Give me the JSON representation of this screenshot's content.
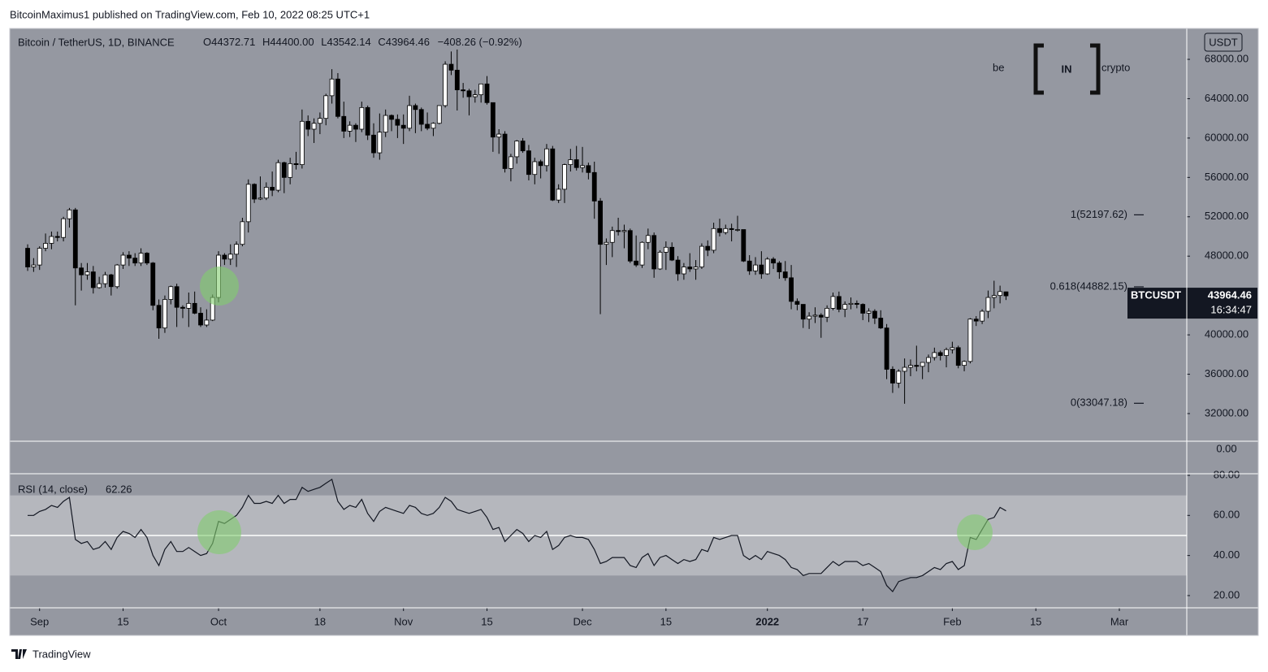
{
  "header": "BitcoinMaximus1 published on TradingView.com, Feb 10, 2022 08:25 UTC+1",
  "footer": "TradingView",
  "logo": {
    "left": "be",
    "middle": "IN",
    "right": "crypto"
  },
  "chart_data": {
    "type": "candlestick",
    "title": "Bitcoin / TetherUS, 1D, BINANCE",
    "legend": {
      "o_label": "O",
      "open": "44372.71",
      "h_label": "H",
      "high": "44400.00",
      "l_label": "L",
      "low": "43542.14",
      "c_label": "C",
      "close": "43964.46",
      "change": "−408.26 (−0.92%)"
    },
    "currency": "USDT",
    "symbol": "BTCUSDT",
    "last_price": 43964.46,
    "countdown": "16:34:47",
    "separator_label": "0.00",
    "up_color": "#ffffff",
    "down_color": "#000000",
    "background": "#9598a1",
    "xlim": [
      -3,
      194.3
    ],
    "xticks": [
      {
        "value": 2,
        "label": "Sep"
      },
      {
        "value": 16,
        "label": "15"
      },
      {
        "value": 32,
        "label": "Oct"
      },
      {
        "value": 49,
        "label": "18"
      },
      {
        "value": 63,
        "label": "Nov"
      },
      {
        "value": 77,
        "label": "15"
      },
      {
        "value": 93,
        "label": "Dec"
      },
      {
        "value": 107,
        "label": "15"
      },
      {
        "value": 124,
        "label": "2022"
      },
      {
        "value": 140,
        "label": "17"
      },
      {
        "value": 155,
        "label": "Feb"
      },
      {
        "value": 169,
        "label": "15"
      },
      {
        "value": 183,
        "label": "Mar"
      }
    ],
    "ylim": [
      29190,
      71140
    ],
    "yticks": [
      {
        "value": 32000,
        "label": "32000.00"
      },
      {
        "value": 36000,
        "label": "36000.00"
      },
      {
        "value": 40000,
        "label": "40000.00"
      },
      {
        "value": 44000,
        "label": "44000.00"
      },
      {
        "value": 48000,
        "label": "48000.00"
      },
      {
        "value": 52000,
        "label": "52000.00"
      },
      {
        "value": 56000,
        "label": "56000.00"
      },
      {
        "value": 60000,
        "label": "60000.00"
      },
      {
        "value": 64000,
        "label": "64000.00"
      },
      {
        "value": 68000,
        "label": "68000.00"
      }
    ],
    "fib_levels": [
      {
        "value": 52197.62,
        "label": "1(52197.62)"
      },
      {
        "value": 44882.15,
        "label": "0.618(44882.15)"
      },
      {
        "value": 33047.18,
        "label": "0(33047.18)"
      }
    ],
    "candles": [
      [
        48800,
        49200,
        46500,
        46900
      ],
      [
        46900,
        47800,
        46400,
        47100
      ],
      [
        47100,
        49000,
        46600,
        48800
      ],
      [
        48800,
        50300,
        48500,
        49300
      ],
      [
        49300,
        50500,
        48700,
        50000
      ],
      [
        50000,
        50500,
        49500,
        49900
      ],
      [
        49900,
        52000,
        49500,
        51800
      ],
      [
        51800,
        52900,
        50900,
        52700
      ],
      [
        52700,
        52900,
        43000,
        46800
      ],
      [
        46800,
        47300,
        44500,
        46100
      ],
      [
        46100,
        47300,
        45600,
        46400
      ],
      [
        46400,
        47000,
        44200,
        44800
      ],
      [
        44800,
        45900,
        44700,
        45200
      ],
      [
        45200,
        46400,
        44800,
        46100
      ],
      [
        46100,
        46200,
        44000,
        44900
      ],
      [
        44900,
        47200,
        44700,
        47100
      ],
      [
        47100,
        48400,
        46700,
        48100
      ],
      [
        48100,
        48500,
        47000,
        47800
      ],
      [
        47800,
        48300,
        47000,
        47300
      ],
      [
        47300,
        48800,
        47000,
        48300
      ],
      [
        48300,
        48400,
        47100,
        47300
      ],
      [
        47300,
        47400,
        42500,
        43000
      ],
      [
        43000,
        43600,
        39600,
        40700
      ],
      [
        40700,
        44000,
        40200,
        43600
      ],
      [
        43600,
        45000,
        43100,
        44900
      ],
      [
        44900,
        45200,
        40800,
        42800
      ],
      [
        42800,
        43000,
        41700,
        42700
      ],
      [
        42700,
        44300,
        40800,
        43200
      ],
      [
        43200,
        44400,
        42100,
        42200
      ],
      [
        42200,
        42800,
        40800,
        41000
      ],
      [
        41000,
        42600,
        40800,
        41500
      ],
      [
        41500,
        44100,
        41400,
        43800
      ],
      [
        43800,
        48500,
        43300,
        48100
      ],
      [
        48100,
        48300,
        47100,
        47700
      ],
      [
        47700,
        49200,
        47100,
        48200
      ],
      [
        48200,
        49500,
        46900,
        49200
      ],
      [
        49200,
        51900,
        49000,
        51500
      ],
      [
        51500,
        55800,
        50400,
        55300
      ],
      [
        55300,
        55400,
        53400,
        53800
      ],
      [
        53800,
        56100,
        53700,
        53900
      ],
      [
        53900,
        55500,
        53700,
        55000
      ],
      [
        55000,
        56600,
        54100,
        54700
      ],
      [
        54700,
        57800,
        54500,
        57500
      ],
      [
        57500,
        57600,
        54400,
        56000
      ],
      [
        56000,
        58000,
        55300,
        57400
      ],
      [
        57400,
        58600,
        56800,
        57300
      ],
      [
        57300,
        62900,
        56900,
        61700
      ],
      [
        61700,
        62300,
        60200,
        60900
      ],
      [
        60900,
        62000,
        59500,
        61500
      ],
      [
        61500,
        62600,
        60400,
        62000
      ],
      [
        62000,
        64500,
        61300,
        64300
      ],
      [
        64300,
        67000,
        63500,
        66000
      ],
      [
        66000,
        66600,
        62000,
        62200
      ],
      [
        62200,
        63700,
        60000,
        60700
      ],
      [
        60700,
        61700,
        60100,
        61300
      ],
      [
        61300,
        61500,
        59600,
        60900
      ],
      [
        60900,
        63700,
        60600,
        63100
      ],
      [
        63100,
        63300,
        59800,
        60300
      ],
      [
        60300,
        61500,
        58000,
        58500
      ],
      [
        58500,
        62500,
        57800,
        60600
      ],
      [
        60600,
        62900,
        60100,
        62300
      ],
      [
        62300,
        62400,
        60700,
        61900
      ],
      [
        61900,
        62400,
        60000,
        61300
      ],
      [
        61300,
        62400,
        59400,
        61000
      ],
      [
        61000,
        64300,
        60700,
        63300
      ],
      [
        63300,
        63500,
        60500,
        62900
      ],
      [
        62900,
        63100,
        60700,
        61400
      ],
      [
        61400,
        62600,
        60800,
        61000
      ],
      [
        61000,
        61600,
        60200,
        61500
      ],
      [
        61500,
        63300,
        61400,
        63300
      ],
      [
        63300,
        67800,
        63100,
        67500
      ],
      [
        67500,
        68800,
        66400,
        66900
      ],
      [
        66900,
        69000,
        62800,
        64900
      ],
      [
        64900,
        65600,
        64100,
        64800
      ],
      [
        64800,
        65000,
        62300,
        64200
      ],
      [
        64200,
        64900,
        63600,
        64400
      ],
      [
        64400,
        65500,
        63600,
        65500
      ],
      [
        65500,
        66300,
        63400,
        63600
      ],
      [
        63600,
        63600,
        58600,
        60100
      ],
      [
        60100,
        60900,
        58400,
        60400
      ],
      [
        60400,
        60700,
        56500,
        56900
      ],
      [
        56900,
        58400,
        55600,
        58100
      ],
      [
        58100,
        59800,
        57400,
        59700
      ],
      [
        59700,
        60000,
        58500,
        58700
      ],
      [
        58700,
        59300,
        55700,
        56300
      ],
      [
        56300,
        58000,
        55300,
        57600
      ],
      [
        57600,
        57800,
        55900,
        57200
      ],
      [
        57200,
        59400,
        56600,
        58900
      ],
      [
        58900,
        59200,
        53600,
        53700
      ],
      [
        53700,
        55300,
        53400,
        54800
      ],
      [
        54800,
        57400,
        53400,
        57300
      ],
      [
        57300,
        58900,
        56600,
        57800
      ],
      [
        57800,
        59200,
        56700,
        57000
      ],
      [
        57000,
        59100,
        56500,
        57200
      ],
      [
        57200,
        57500,
        55800,
        56500
      ],
      [
        56500,
        57600,
        51800,
        53600
      ],
      [
        53600,
        53900,
        42100,
        49200
      ],
      [
        49200,
        49800,
        47100,
        49400
      ],
      [
        49400,
        51000,
        47900,
        50600
      ],
      [
        50600,
        51900,
        50100,
        50500
      ],
      [
        50500,
        51200,
        48800,
        50600
      ],
      [
        50600,
        50800,
        47300,
        47500
      ],
      [
        47500,
        50100,
        46900,
        47100
      ],
      [
        47100,
        49500,
        46800,
        49400
      ],
      [
        49400,
        50800,
        48700,
        50100
      ],
      [
        50100,
        50400,
        45800,
        46700
      ],
      [
        46700,
        48600,
        46600,
        48400
      ],
      [
        48400,
        49500,
        46600,
        48900
      ],
      [
        48900,
        49400,
        47500,
        47600
      ],
      [
        47600,
        48000,
        45500,
        46200
      ],
      [
        46200,
        47300,
        45600,
        46900
      ],
      [
        46900,
        48300,
        46400,
        46700
      ],
      [
        46700,
        47600,
        45600,
        46900
      ],
      [
        46900,
        49300,
        46700,
        49000
      ],
      [
        49000,
        49600,
        48000,
        48600
      ],
      [
        48600,
        51400,
        48300,
        50800
      ],
      [
        50800,
        51800,
        50000,
        50400
      ],
      [
        50400,
        51200,
        50200,
        50800
      ],
      [
        50800,
        51300,
        49500,
        50700
      ],
      [
        50700,
        52100,
        50500,
        50700
      ],
      [
        50700,
        50700,
        47400,
        47500
      ],
      [
        47500,
        48100,
        46100,
        46500
      ],
      [
        46500,
        47900,
        46100,
        47100
      ],
      [
        47100,
        48500,
        45700,
        46200
      ],
      [
        46200,
        47900,
        46100,
        47700
      ],
      [
        47700,
        47900,
        46700,
        47300
      ],
      [
        47300,
        47500,
        45700,
        46400
      ],
      [
        46400,
        47500,
        45500,
        45800
      ],
      [
        45800,
        47100,
        42600,
        43400
      ],
      [
        43400,
        43700,
        42500,
        43100
      ],
      [
        43100,
        43100,
        40700,
        41600
      ],
      [
        41600,
        42300,
        40600,
        41900
      ],
      [
        41900,
        42800,
        41200,
        42000
      ],
      [
        42000,
        42200,
        39700,
        41800
      ],
      [
        41800,
        43000,
        41300,
        42700
      ],
      [
        42700,
        44300,
        42500,
        43900
      ],
      [
        43900,
        44400,
        42300,
        42600
      ],
      [
        42600,
        43400,
        41800,
        43100
      ],
      [
        43100,
        43800,
        42600,
        43200
      ],
      [
        43200,
        43500,
        42700,
        43100
      ],
      [
        43100,
        43200,
        41500,
        42200
      ],
      [
        42200,
        42700,
        41300,
        42400
      ],
      [
        42400,
        42600,
        41100,
        41700
      ],
      [
        41700,
        42500,
        40600,
        40700
      ],
      [
        40700,
        41100,
        35500,
        36500
      ],
      [
        36500,
        36800,
        34100,
        35100
      ],
      [
        35100,
        36500,
        34600,
        36300
      ],
      [
        36300,
        37600,
        33000,
        36700
      ],
      [
        36700,
        37500,
        35800,
        36900
      ],
      [
        36900,
        38900,
        36300,
        36800
      ],
      [
        36800,
        37200,
        35500,
        37200
      ],
      [
        37200,
        38000,
        36200,
        37700
      ],
      [
        37700,
        38700,
        37400,
        38200
      ],
      [
        38200,
        38400,
        37400,
        37900
      ],
      [
        37900,
        38700,
        36700,
        38500
      ],
      [
        38500,
        39300,
        38100,
        38700
      ],
      [
        38700,
        38900,
        36600,
        36900
      ],
      [
        36900,
        37400,
        36300,
        37300
      ],
      [
        37300,
        41700,
        37100,
        41600
      ],
      [
        41600,
        41900,
        40900,
        41400
      ],
      [
        41400,
        42600,
        41100,
        42400
      ],
      [
        42400,
        44500,
        41700,
        43800
      ],
      [
        43800,
        45500,
        42700,
        44000
      ],
      [
        44000,
        45000,
        43200,
        44400
      ],
      [
        44372.71,
        44400,
        43542.14,
        43964.46
      ]
    ],
    "rsi": {
      "title": "RSI (14, close)",
      "last": 62.26,
      "color": "#131722",
      "ylim": [
        13.9,
        80.8
      ],
      "yticks": [
        {
          "value": 20,
          "label": "20.00"
        },
        {
          "value": 40,
          "label": "40.00"
        },
        {
          "value": 60,
          "label": "60.00"
        },
        {
          "value": 80,
          "label": "80.00"
        }
      ],
      "band": [
        30,
        70
      ],
      "midline": 50,
      "values": [
        60,
        60,
        62,
        63,
        65,
        64,
        67,
        69,
        48,
        46,
        47,
        43,
        44,
        47,
        43,
        49,
        52,
        51,
        49,
        53,
        49,
        40,
        35,
        43,
        47,
        42,
        42,
        44,
        42,
        40,
        41,
        46,
        57,
        56,
        58,
        60,
        64,
        70,
        66,
        66,
        67,
        66,
        70,
        66,
        68,
        68,
        74,
        72,
        73,
        74,
        76,
        78,
        67,
        63,
        65,
        64,
        68,
        61,
        57,
        62,
        64,
        63,
        62,
        61,
        65,
        64,
        61,
        60,
        61,
        64,
        69,
        67,
        63,
        62,
        61,
        62,
        63,
        59,
        53,
        54,
        47,
        50,
        53,
        51,
        47,
        50,
        49,
        52,
        43,
        45,
        49,
        50,
        49,
        49,
        48,
        43,
        36,
        37,
        39,
        39,
        39,
        35,
        34,
        39,
        41,
        35,
        39,
        40,
        38,
        36,
        38,
        37,
        38,
        43,
        42,
        49,
        48,
        49,
        50,
        50,
        40,
        38,
        40,
        38,
        42,
        41,
        40,
        38,
        34,
        33,
        30,
        31,
        31,
        31,
        34,
        37,
        35,
        37,
        37,
        37,
        35,
        36,
        34,
        32,
        25,
        22,
        27,
        28,
        29,
        29,
        30,
        32,
        34,
        33,
        36,
        37,
        33,
        35,
        49,
        48,
        53,
        58,
        59,
        64,
        62.26
      ]
    }
  }
}
